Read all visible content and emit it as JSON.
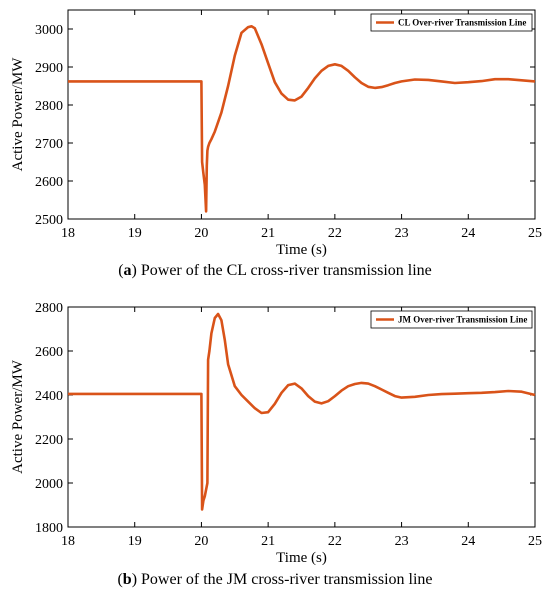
{
  "chart_data": [
    {
      "type": "line",
      "caption_letter": "a",
      "caption_text": "Power of the CL cross-river transmission line",
      "xlabel": "Time (s)",
      "ylabel": "Active Power/MW",
      "xlim": [
        18,
        25
      ],
      "ylim": [
        2500,
        3050
      ],
      "xticks": [
        18,
        19,
        20,
        21,
        22,
        23,
        24,
        25
      ],
      "yticks": [
        2500,
        2600,
        2700,
        2800,
        2900,
        3000
      ],
      "legend": "top-right",
      "line_color": "#d95319",
      "series": [
        {
          "name": "CL Over-river Transmission Line",
          "x": [
            18,
            20.0,
            20.01,
            20.03,
            20.05,
            20.07,
            20.08,
            20.09,
            20.1,
            20.12,
            20.15,
            20.2,
            20.3,
            20.4,
            20.5,
            20.6,
            20.7,
            20.75,
            20.8,
            20.9,
            21.0,
            21.1,
            21.2,
            21.3,
            21.4,
            21.5,
            21.6,
            21.7,
            21.8,
            21.9,
            22.0,
            22.1,
            22.2,
            22.3,
            22.4,
            22.5,
            22.6,
            22.7,
            22.8,
            22.9,
            23.0,
            23.2,
            23.4,
            23.6,
            23.8,
            24.0,
            24.2,
            24.4,
            24.6,
            24.8,
            25.0
          ],
          "y": [
            2862,
            2862,
            2650,
            2620,
            2590,
            2520,
            2640,
            2680,
            2690,
            2700,
            2710,
            2730,
            2780,
            2850,
            2930,
            2990,
            3005,
            3007,
            3002,
            2960,
            2910,
            2860,
            2830,
            2814,
            2812,
            2822,
            2845,
            2870,
            2890,
            2903,
            2907,
            2903,
            2890,
            2873,
            2858,
            2848,
            2845,
            2847,
            2852,
            2858,
            2862,
            2867,
            2866,
            2862,
            2858,
            2860,
            2863,
            2868,
            2868,
            2865,
            2862
          ]
        }
      ]
    },
    {
      "type": "line",
      "caption_letter": "b",
      "caption_text": "Power of the JM cross-river transmission line",
      "xlabel": "Time (s)",
      "ylabel": "Active Power/MW",
      "xlim": [
        18,
        25
      ],
      "ylim": [
        1800,
        2800
      ],
      "xticks": [
        18,
        19,
        20,
        21,
        22,
        23,
        24,
        25
      ],
      "yticks": [
        1800,
        2000,
        2200,
        2400,
        2600,
        2800
      ],
      "legend": "top-right",
      "line_color": "#d95319",
      "series": [
        {
          "name": "JM Over-river Transmission Line",
          "x": [
            18,
            20.0,
            20.01,
            20.03,
            20.05,
            20.07,
            20.09,
            20.1,
            20.12,
            20.15,
            20.2,
            20.25,
            20.3,
            20.35,
            20.4,
            20.5,
            20.6,
            20.7,
            20.8,
            20.9,
            21.0,
            21.1,
            21.2,
            21.3,
            21.4,
            21.5,
            21.6,
            21.7,
            21.8,
            21.9,
            22.0,
            22.1,
            22.2,
            22.3,
            22.4,
            22.5,
            22.6,
            22.7,
            22.8,
            22.9,
            23.0,
            23.2,
            23.4,
            23.6,
            23.8,
            24.0,
            24.2,
            24.4,
            24.6,
            24.8,
            25.0
          ],
          "y": [
            2405,
            2405,
            1880,
            1920,
            1940,
            1970,
            2000,
            2560,
            2600,
            2680,
            2750,
            2768,
            2740,
            2650,
            2540,
            2440,
            2400,
            2370,
            2340,
            2318,
            2322,
            2360,
            2410,
            2445,
            2452,
            2430,
            2395,
            2370,
            2362,
            2372,
            2395,
            2420,
            2440,
            2450,
            2455,
            2452,
            2440,
            2425,
            2410,
            2395,
            2388,
            2392,
            2400,
            2404,
            2406,
            2408,
            2410,
            2413,
            2418,
            2415,
            2400
          ]
        }
      ]
    }
  ]
}
